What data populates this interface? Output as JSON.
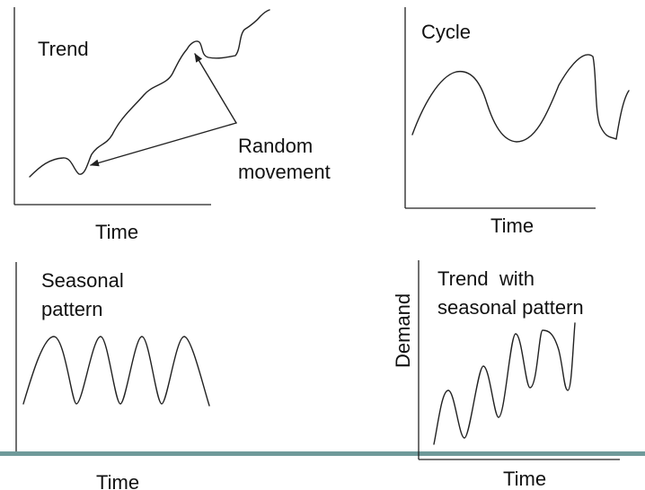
{
  "panels": {
    "trend": {
      "title": "Trend",
      "xlabel": "Time",
      "annotation_line1": "Random",
      "annotation_line2": "movement"
    },
    "cycle": {
      "title": "Cycle",
      "xlabel": "Time"
    },
    "seasonal": {
      "title_line1": "Seasonal",
      "title_line2": "pattern",
      "xlabel": "Time"
    },
    "trend_seasonal": {
      "title_line1": "Trend  with",
      "title_line2": "seasonal pattern",
      "xlabel": "Time",
      "ylabel": "Demand"
    }
  },
  "colors": {
    "line": "#222222",
    "divider": "#6f9a9a"
  }
}
